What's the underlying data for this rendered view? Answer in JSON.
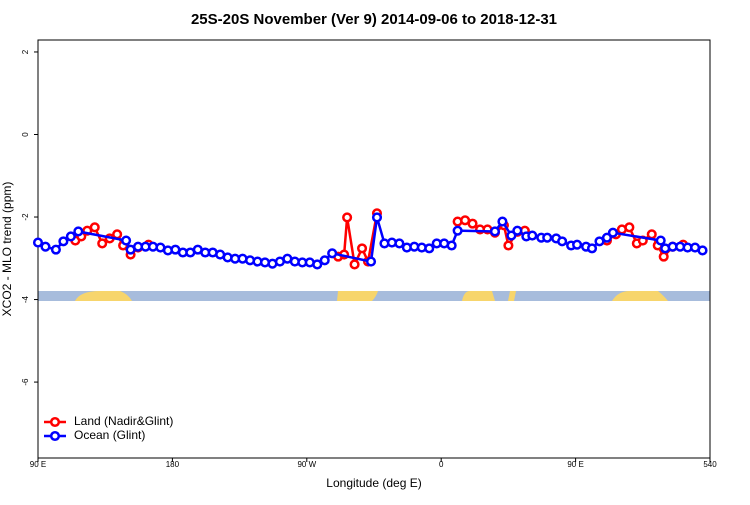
{
  "chart_data": {
    "type": "line",
    "title": "25S-20S November (Ver 9)   2014-09-06 to 2018-12-31",
    "xlabel": "Longitude (deg E)",
    "ylabel": "XCO2 - MLO trend (ppm)",
    "xlim": [
      90,
      540
    ],
    "ylim": [
      -7.84,
      2.29
    ],
    "xticks": [
      {
        "value": 90,
        "label": "90 E"
      },
      180,
      {
        "value": 270,
        "label": "90 W"
      },
      {
        "value": 360,
        "label": "0"
      },
      {
        "value": 450,
        "label": "90 E"
      },
      540
    ],
    "yticks": [
      2,
      0,
      -2,
      -4,
      -6
    ],
    "legend": "bottom-left",
    "series": [
      {
        "name": "Land (Nadir&Glint)",
        "color": "#ff0000",
        "x": [
          115,
          119,
          123,
          128,
          133,
          138,
          143,
          147,
          152,
          157,
          164,
          null,
          291,
          295,
          297,
          302,
          307,
          311,
          317,
          null,
          371,
          376,
          381,
          386,
          391,
          396,
          402,
          405,
          411,
          416,
          null,
          471,
          477,
          481,
          486,
          491,
          495,
          501,
          505,
          509,
          515,
          522
        ],
        "values": [
          -2.57,
          -2.47,
          -2.33,
          -2.25,
          -2.64,
          -2.52,
          -2.42,
          -2.69,
          -2.91,
          -2.74,
          -2.67,
          null,
          -2.96,
          -2.91,
          -2.01,
          -3.15,
          -2.76,
          -3.08,
          -1.91,
          null,
          -2.11,
          -2.08,
          -2.16,
          -2.3,
          -2.3,
          -2.38,
          -2.2,
          -2.69,
          -2.36,
          -2.33,
          null,
          -2.57,
          -2.42,
          -2.3,
          -2.25,
          -2.64,
          -2.57,
          -2.42,
          -2.69,
          -2.96,
          -2.72,
          -2.67
        ]
      },
      {
        "name": "Ocean (Glint)",
        "color": "#0000ff",
        "x": [
          90,
          95,
          102,
          107,
          112,
          117,
          149,
          152,
          157,
          162,
          167,
          172,
          177,
          182,
          187,
          192,
          197,
          202,
          207,
          212,
          217,
          222,
          227,
          232,
          237,
          242,
          247,
          252,
          257,
          262,
          267,
          272,
          277,
          282,
          287,
          313,
          317,
          322,
          327,
          332,
          337,
          342,
          347,
          352,
          357,
          362,
          367,
          371,
          396,
          401,
          407,
          411,
          417,
          421,
          427,
          431,
          437,
          441,
          447,
          451,
          457,
          461,
          466,
          471,
          475,
          507,
          510,
          515,
          520,
          525,
          530,
          535
        ],
        "values": [
          -2.62,
          -2.72,
          -2.79,
          -2.59,
          -2.47,
          -2.35,
          -2.57,
          -2.79,
          -2.72,
          -2.72,
          -2.72,
          -2.74,
          -2.81,
          -2.79,
          -2.86,
          -2.86,
          -2.79,
          -2.86,
          -2.86,
          -2.91,
          -2.98,
          -3.01,
          -3.01,
          -3.05,
          -3.08,
          -3.1,
          -3.13,
          -3.08,
          -3.01,
          -3.08,
          -3.1,
          -3.1,
          -3.15,
          -3.05,
          -2.88,
          -3.08,
          -2.01,
          -2.64,
          -2.62,
          -2.64,
          -2.74,
          -2.72,
          -2.74,
          -2.76,
          -2.64,
          -2.64,
          -2.69,
          -2.33,
          -2.35,
          -2.11,
          -2.45,
          -2.33,
          -2.47,
          -2.45,
          -2.5,
          -2.5,
          -2.52,
          -2.59,
          -2.69,
          -2.67,
          -2.72,
          -2.76,
          -2.59,
          -2.5,
          -2.38,
          -2.57,
          -2.76,
          -2.72,
          -2.72,
          -2.74,
          -2.74,
          -2.81
        ]
      }
    ]
  }
}
